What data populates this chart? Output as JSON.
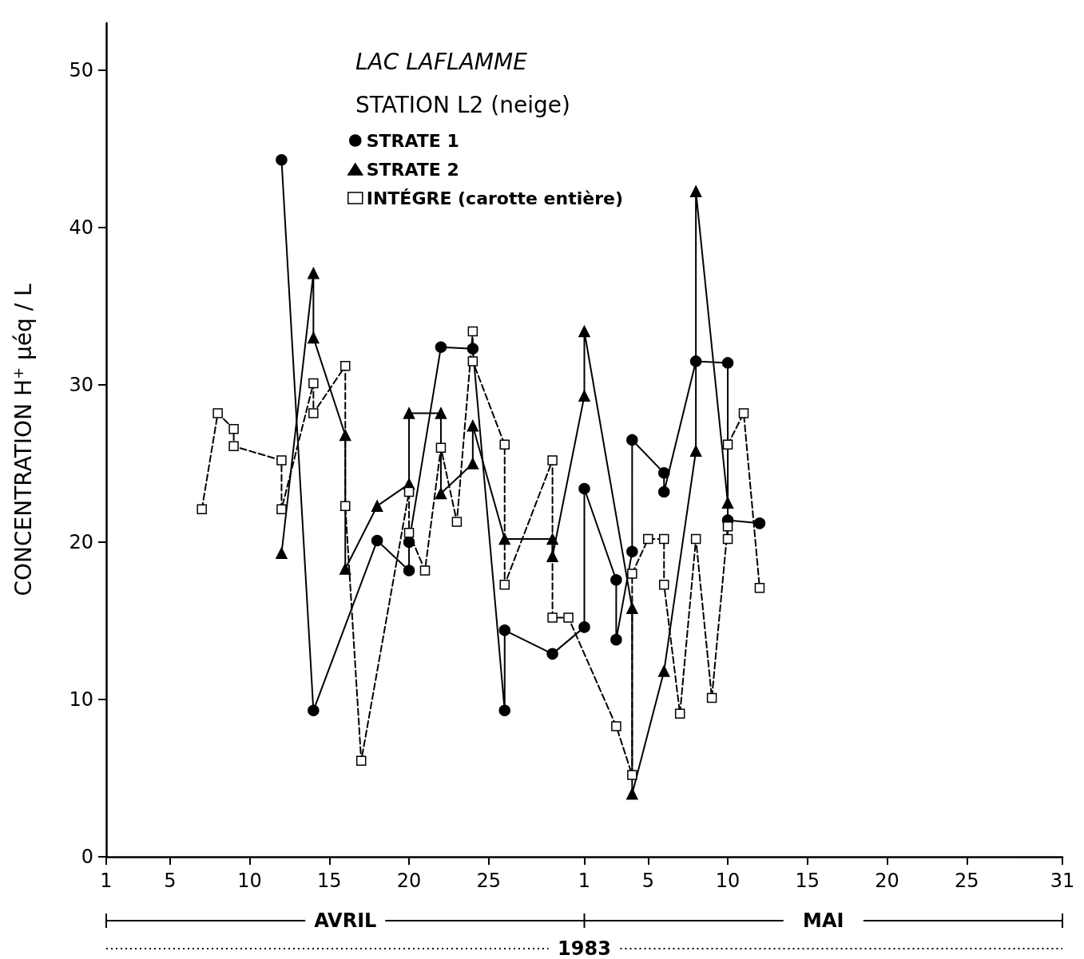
{
  "chart_data": {
    "type": "line",
    "title": "LAC LAFLAMME",
    "subtitle": "STATION L2 (neige)",
    "ylabel": "CONCENTRATION H$^{+}$ μéq / L",
    "xlabel": "1983",
    "annotations": [
      "AVRIL",
      "MAI"
    ],
    "xlim": [
      "1983-04-01",
      "1983-05-31"
    ],
    "xticks": [
      {
        "value": "1983-04-01",
        "label": "1"
      },
      {
        "value": "1983-04-05",
        "label": "5"
      },
      {
        "value": "1983-04-10",
        "label": "10"
      },
      {
        "value": "1983-04-15",
        "label": "15"
      },
      {
        "value": "1983-04-20",
        "label": "20"
      },
      {
        "value": "1983-04-25",
        "label": "25"
      },
      {
        "value": "1983-05-01",
        "label": "1"
      },
      {
        "value": "1983-05-05",
        "label": "5"
      },
      {
        "value": "1983-05-10",
        "label": "10"
      },
      {
        "value": "1983-05-15",
        "label": "15"
      },
      {
        "value": "1983-05-20",
        "label": "20"
      },
      {
        "value": "1983-05-25",
        "label": "25"
      },
      {
        "value": "1983-05-31",
        "label": "31"
      }
    ],
    "ylim": [
      0,
      53
    ],
    "yticks": [
      0,
      10,
      20,
      30,
      40,
      50
    ],
    "grid": false,
    "legend": "top",
    "series": [
      {
        "name": "STRATE 1",
        "color": "#000000",
        "marker": "circle",
        "line_style": "solid",
        "x": [
          "1983-04-12",
          "1983-04-14",
          "1983-04-18",
          "1983-04-20",
          "1983-04-20",
          "1983-04-22",
          "1983-04-24",
          "1983-04-26",
          "1983-04-26",
          "1983-04-29",
          "1983-05-01",
          "1983-05-01",
          "1983-05-03",
          "1983-05-03",
          "1983-05-04",
          "1983-05-04",
          "1983-05-06",
          "1983-05-06",
          "1983-05-08",
          "1983-05-10",
          "1983-05-10",
          "1983-05-12"
        ],
        "values": [
          44.3,
          9.3,
          20.1,
          18.2,
          20.0,
          32.4,
          32.3,
          9.3,
          14.4,
          12.9,
          14.6,
          23.4,
          17.6,
          13.8,
          19.4,
          26.5,
          24.4,
          23.2,
          31.5,
          31.4,
          21.4,
          21.2
        ]
      },
      {
        "name": "STRATE 2",
        "color": "#000000",
        "marker": "triangle",
        "line_style": "solid",
        "x": [
          "1983-04-12",
          "1983-04-14",
          "1983-04-14",
          "1983-04-16",
          "1983-04-16",
          "1983-04-18",
          "1983-04-20",
          "1983-04-20",
          "1983-04-22",
          "1983-04-22",
          "1983-04-24",
          "1983-04-24",
          "1983-04-26",
          "1983-04-29",
          "1983-04-29",
          "1983-05-01",
          "1983-05-01",
          "1983-05-04",
          "1983-05-04",
          "1983-05-06",
          "1983-05-08",
          "1983-05-08",
          "1983-05-10"
        ],
        "values": [
          19.3,
          37.1,
          33.0,
          26.8,
          18.3,
          22.3,
          23.7,
          28.2,
          28.2,
          23.1,
          25.0,
          27.4,
          20.2,
          20.2,
          19.1,
          29.3,
          33.4,
          15.8,
          4.0,
          11.8,
          25.8,
          42.3,
          22.5
        ]
      },
      {
        "name": "INTÉGRE (carotte entière)",
        "color": "#000000",
        "marker": "square",
        "line_style": "dashed",
        "x": [
          "1983-04-07",
          "1983-04-08",
          "1983-04-09",
          "1983-04-09",
          "1983-04-12",
          "1983-04-12",
          "1983-04-14",
          "1983-04-14",
          "1983-04-16",
          "1983-04-16",
          "1983-04-17",
          "1983-04-20",
          "1983-04-20",
          "1983-04-21",
          "1983-04-22",
          "1983-04-23",
          "1983-04-24",
          "1983-04-24",
          "1983-04-26",
          "1983-04-26",
          "1983-04-29",
          "1983-04-29",
          "1983-04-30",
          "1983-05-03",
          "1983-05-04",
          "1983-05-04",
          "1983-05-05",
          "1983-05-06",
          "1983-05-06",
          "1983-05-07",
          "1983-05-08",
          "1983-05-09",
          "1983-05-10",
          "1983-05-10",
          "1983-05-10",
          "1983-05-11",
          "1983-05-12"
        ],
        "values": [
          22.1,
          28.2,
          27.2,
          26.1,
          25.2,
          22.1,
          30.1,
          28.2,
          31.2,
          22.3,
          6.1,
          23.2,
          20.6,
          18.2,
          26.0,
          21.3,
          33.4,
          31.5,
          26.2,
          17.3,
          25.2,
          15.2,
          15.2,
          8.3,
          5.2,
          18.0,
          20.2,
          20.2,
          17.3,
          9.1,
          20.2,
          10.1,
          21.0,
          20.2,
          26.2,
          28.2,
          17.1
        ]
      }
    ]
  }
}
